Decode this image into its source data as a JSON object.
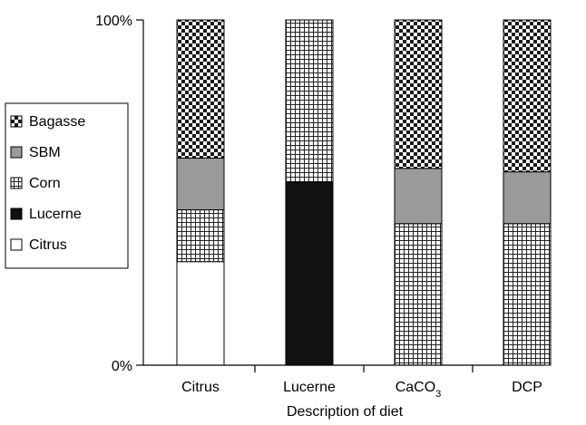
{
  "chart_data": {
    "type": "bar",
    "stacked": true,
    "percent_stacked": true,
    "xlabel": "Description of diet",
    "ylabel": "",
    "y_ticks": [
      "0%",
      "100%"
    ],
    "ylim": [
      0,
      100
    ],
    "categories": [
      {
        "label": "Citrus",
        "sub": ""
      },
      {
        "label": "Lucerne",
        "sub": ""
      },
      {
        "label": "CaCO",
        "sub": "3"
      },
      {
        "label": "DCP",
        "sub": ""
      }
    ],
    "series": [
      {
        "name": "Citrus",
        "pattern": "white",
        "values": [
          30,
          0,
          0,
          0
        ]
      },
      {
        "name": "Lucerne",
        "pattern": "black",
        "values": [
          0,
          53,
          0,
          0
        ]
      },
      {
        "name": "Corn",
        "pattern": "small-grid",
        "values": [
          15,
          47,
          41,
          41
        ]
      },
      {
        "name": "SBM",
        "pattern": "gray",
        "values": [
          15,
          0,
          16,
          15
        ]
      },
      {
        "name": "Bagasse",
        "pattern": "checker",
        "values": [
          40,
          0,
          43,
          44
        ]
      }
    ],
    "legend": {
      "placement": "left",
      "order": [
        "Bagasse",
        "SBM",
        "Corn",
        "Lucerne",
        "Citrus"
      ]
    },
    "grid": false
  }
}
